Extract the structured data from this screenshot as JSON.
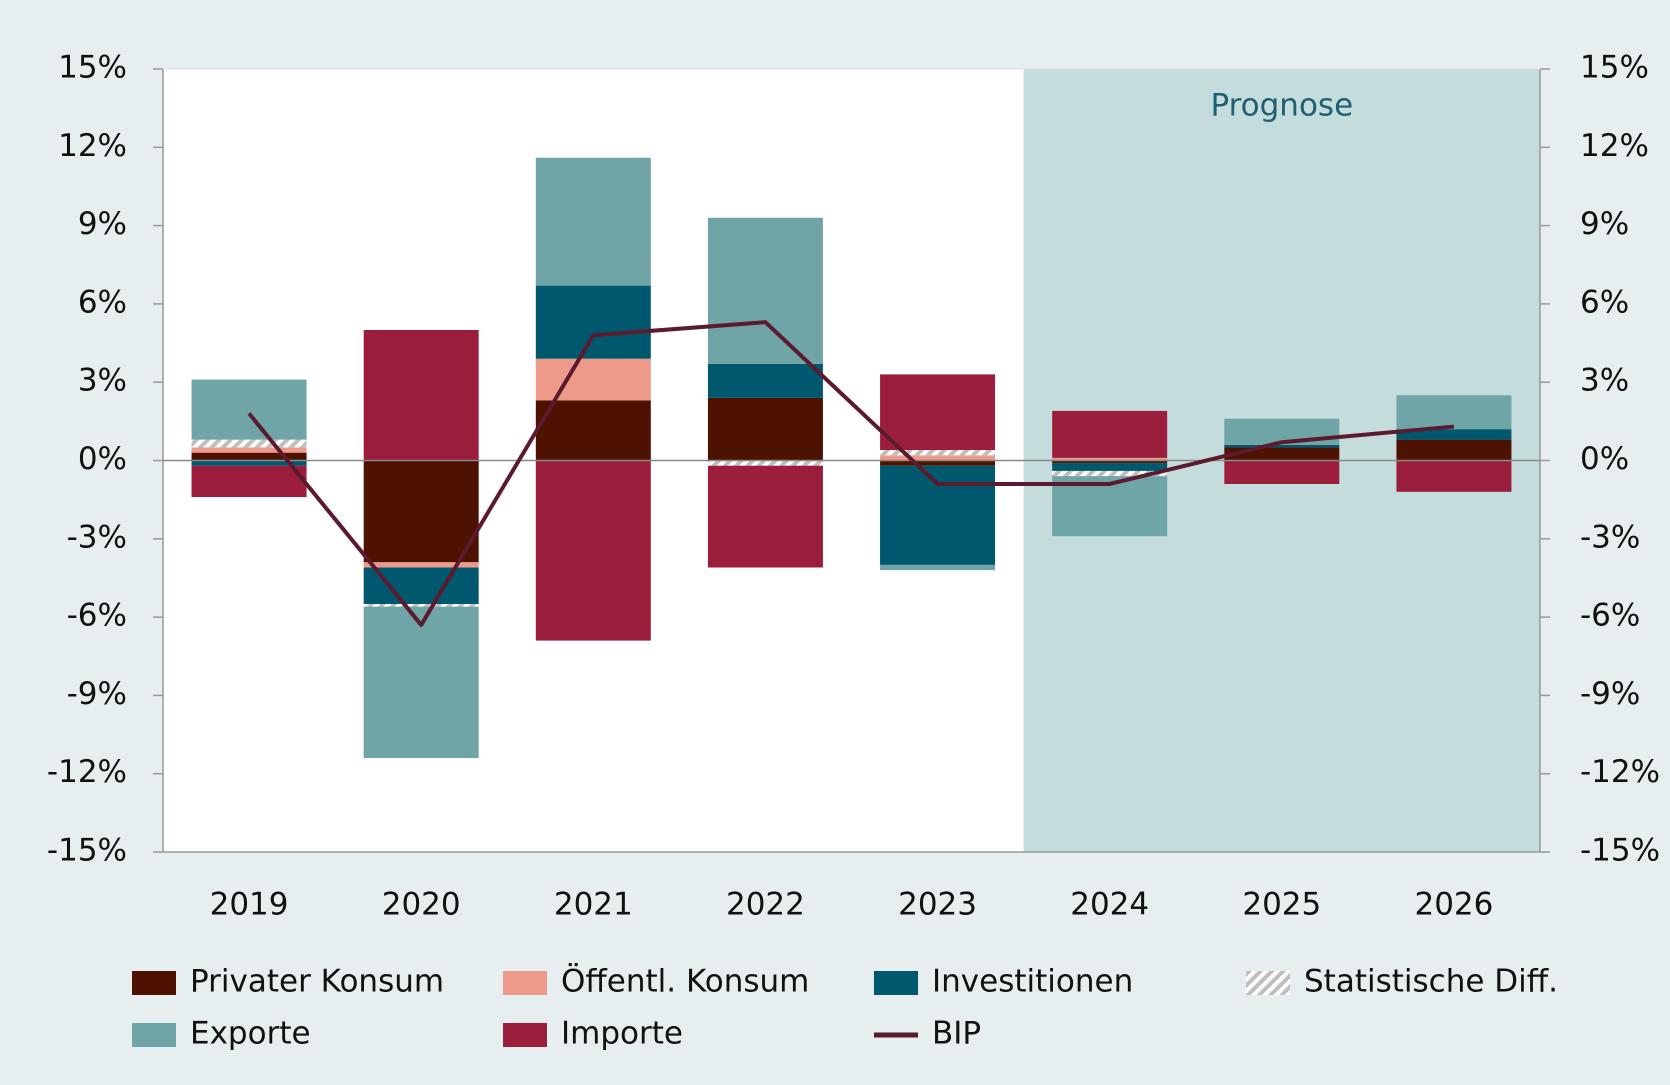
{
  "chart_data": {
    "type": "bar",
    "stacked": true,
    "categories": [
      "2019",
      "2020",
      "2021",
      "2022",
      "2023",
      "2024",
      "2025",
      "2026"
    ],
    "series": [
      {
        "name": "Privater Konsum",
        "color": "#4e1200",
        "values": [
          0.3,
          -3.9,
          2.3,
          2.4,
          -0.2,
          -0.1,
          0.5,
          0.8
        ]
      },
      {
        "name": "Öffentl. Konsum",
        "color": "#ed9a8b",
        "values": [
          0.2,
          -0.2,
          1.6,
          0,
          0.2,
          0.1,
          0,
          0
        ]
      },
      {
        "name": "Investitionen",
        "color": "#00586e",
        "values": [
          -0.2,
          -1.4,
          2.8,
          1.3,
          -3.8,
          -0.3,
          0.1,
          0.4
        ]
      },
      {
        "name": "Statistische Diff.",
        "color": "#bfbfbf",
        "pattern": "hatch",
        "values": [
          0.3,
          -0.1,
          0,
          -0.2,
          0.2,
          -0.2,
          0,
          0
        ]
      },
      {
        "name": "Exporte",
        "color": "#6fa5a7",
        "values": [
          2.3,
          -5.8,
          4.9,
          5.6,
          -0.2,
          -2.3,
          1.0,
          1.3
        ]
      },
      {
        "name": "Importe",
        "color": "#9b1f3d",
        "values": [
          -1.2,
          5.0,
          -6.9,
          -3.9,
          2.9,
          1.8,
          -0.9,
          -1.2
        ]
      },
      {
        "name": "BIP",
        "type": "line",
        "color": "#5c1a2e",
        "values": [
          1.8,
          -6.3,
          4.8,
          5.3,
          -0.9,
          -0.9,
          0.7,
          1.3
        ]
      }
    ],
    "ylim": [
      -15,
      15
    ],
    "yticks": [
      {
        "value": -15,
        "label": "-15%"
      },
      {
        "value": -12,
        "label": "-12%"
      },
      {
        "value": -9,
        "label": "-9%"
      },
      {
        "value": -6,
        "label": "-6%"
      },
      {
        "value": -3,
        "label": "-3%"
      },
      {
        "value": 0,
        "label": "0%"
      },
      {
        "value": 3,
        "label": "3%"
      },
      {
        "value": 6,
        "label": "6%"
      },
      {
        "value": 9,
        "label": "9%"
      },
      {
        "value": 12,
        "label": "12%"
      },
      {
        "value": 15,
        "label": "15%"
      }
    ],
    "y2lim": [
      -15,
      15
    ],
    "y2ticks": [
      {
        "value": -15,
        "label": "-15%"
      },
      {
        "value": -12,
        "label": "-12%"
      },
      {
        "value": -9,
        "label": "-9%"
      },
      {
        "value": -6,
        "label": "-6%"
      },
      {
        "value": -3,
        "label": "-3%"
      },
      {
        "value": 0,
        "label": "0%"
      },
      {
        "value": 3,
        "label": "3%"
      },
      {
        "value": 6,
        "label": "6%"
      },
      {
        "value": 9,
        "label": "9%"
      },
      {
        "value": 12,
        "label": "12%"
      },
      {
        "value": 15,
        "label": "15%"
      }
    ],
    "shaded_from": "2024",
    "shade_color": "#c5dcdd",
    "annotation": "Prognose",
    "legend": "bottom"
  }
}
